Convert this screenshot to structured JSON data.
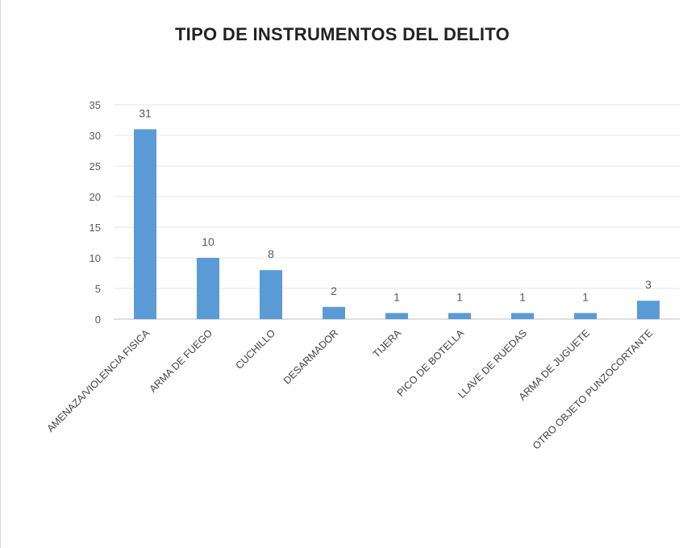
{
  "chart_data": {
    "type": "bar",
    "title": "TIPO DE INSTRUMENTOS DEL DELITO",
    "categories": [
      "AMENAZA/VIOLENCIA FISICA",
      "ARMA DE FUEGO",
      "CUCHILLO",
      "DESARMADOR",
      "TIJERA",
      "PICO DE BOTELLA",
      "LLAVE DE RUEDAS",
      "ARMA DE JUGUETE",
      "OTRO OBJETO PUNZOCORTANTE"
    ],
    "values": [
      31,
      10,
      8,
      2,
      1,
      1,
      1,
      1,
      3
    ],
    "ylim": [
      0,
      35
    ],
    "yticks": [
      0,
      5,
      10,
      15,
      20,
      25,
      30,
      35
    ],
    "grid": true,
    "data_labels": true,
    "bar_color": "#5b9bd5"
  }
}
